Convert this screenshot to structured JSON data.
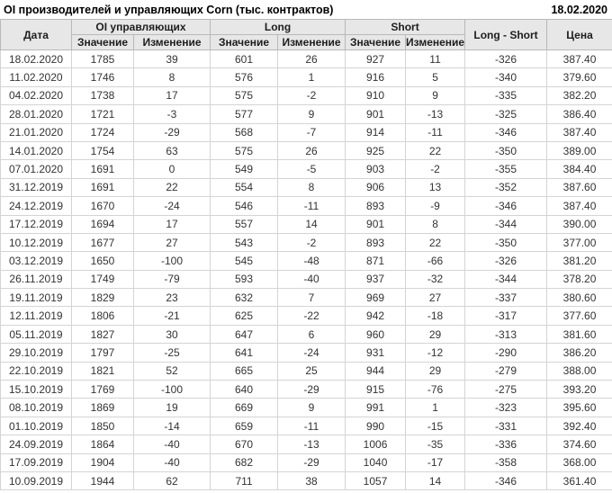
{
  "titlebar": {
    "title": "OI производителей и управляющих Corn (тыс. контрактов)",
    "date": "18.02.2020"
  },
  "table": {
    "group_headers": {
      "date": "Дата",
      "oi": "OI управляющих",
      "long": "Long",
      "short": "Short",
      "long_short": "Long - Short",
      "price": "Цена"
    },
    "sub_headers": {
      "value": "Значение",
      "change": "Изменение"
    },
    "column_keys": [
      "date",
      "oi_value",
      "oi_change",
      "long_value",
      "long_change",
      "short_value",
      "short_change",
      "long_short",
      "price"
    ],
    "rows": [
      [
        "18.02.2020",
        "1785",
        "39",
        "601",
        "26",
        "927",
        "11",
        "-326",
        "387.40"
      ],
      [
        "11.02.2020",
        "1746",
        "8",
        "576",
        "1",
        "916",
        "5",
        "-340",
        "379.60"
      ],
      [
        "04.02.2020",
        "1738",
        "17",
        "575",
        "-2",
        "910",
        "9",
        "-335",
        "382.20"
      ],
      [
        "28.01.2020",
        "1721",
        "-3",
        "577",
        "9",
        "901",
        "-13",
        "-325",
        "386.40"
      ],
      [
        "21.01.2020",
        "1724",
        "-29",
        "568",
        "-7",
        "914",
        "-11",
        "-346",
        "387.40"
      ],
      [
        "14.01.2020",
        "1754",
        "63",
        "575",
        "26",
        "925",
        "22",
        "-350",
        "389.00"
      ],
      [
        "07.01.2020",
        "1691",
        "0",
        "549",
        "-5",
        "903",
        "-2",
        "-355",
        "384.40"
      ],
      [
        "31.12.2019",
        "1691",
        "22",
        "554",
        "8",
        "906",
        "13",
        "-352",
        "387.60"
      ],
      [
        "24.12.2019",
        "1670",
        "-24",
        "546",
        "-11",
        "893",
        "-9",
        "-346",
        "387.40"
      ],
      [
        "17.12.2019",
        "1694",
        "17",
        "557",
        "14",
        "901",
        "8",
        "-344",
        "390.00"
      ],
      [
        "10.12.2019",
        "1677",
        "27",
        "543",
        "-2",
        "893",
        "22",
        "-350",
        "377.00"
      ],
      [
        "03.12.2019",
        "1650",
        "-100",
        "545",
        "-48",
        "871",
        "-66",
        "-326",
        "381.20"
      ],
      [
        "26.11.2019",
        "1749",
        "-79",
        "593",
        "-40",
        "937",
        "-32",
        "-344",
        "378.20"
      ],
      [
        "19.11.2019",
        "1829",
        "23",
        "632",
        "7",
        "969",
        "27",
        "-337",
        "380.60"
      ],
      [
        "12.11.2019",
        "1806",
        "-21",
        "625",
        "-22",
        "942",
        "-18",
        "-317",
        "377.60"
      ],
      [
        "05.11.2019",
        "1827",
        "30",
        "647",
        "6",
        "960",
        "29",
        "-313",
        "381.60"
      ],
      [
        "29.10.2019",
        "1797",
        "-25",
        "641",
        "-24",
        "931",
        "-12",
        "-290",
        "386.20"
      ],
      [
        "22.10.2019",
        "1821",
        "52",
        "665",
        "25",
        "944",
        "29",
        "-279",
        "388.00"
      ],
      [
        "15.10.2019",
        "1769",
        "-100",
        "640",
        "-29",
        "915",
        "-76",
        "-275",
        "393.20"
      ],
      [
        "08.10.2019",
        "1869",
        "19",
        "669",
        "9",
        "991",
        "1",
        "-323",
        "395.60"
      ],
      [
        "01.10.2019",
        "1850",
        "-14",
        "659",
        "-11",
        "990",
        "-15",
        "-331",
        "392.40"
      ],
      [
        "24.09.2019",
        "1864",
        "-40",
        "670",
        "-13",
        "1006",
        "-35",
        "-336",
        "374.60"
      ],
      [
        "17.09.2019",
        "1904",
        "-40",
        "682",
        "-29",
        "1040",
        "-17",
        "-358",
        "368.00"
      ],
      [
        "10.09.2019",
        "1944",
        "62",
        "711",
        "38",
        "1057",
        "14",
        "-346",
        "361.40"
      ]
    ]
  },
  "colors": {
    "positive": "#0a9b0a",
    "negative": "#cc2222",
    "header_bg": "#e7e7e7"
  }
}
